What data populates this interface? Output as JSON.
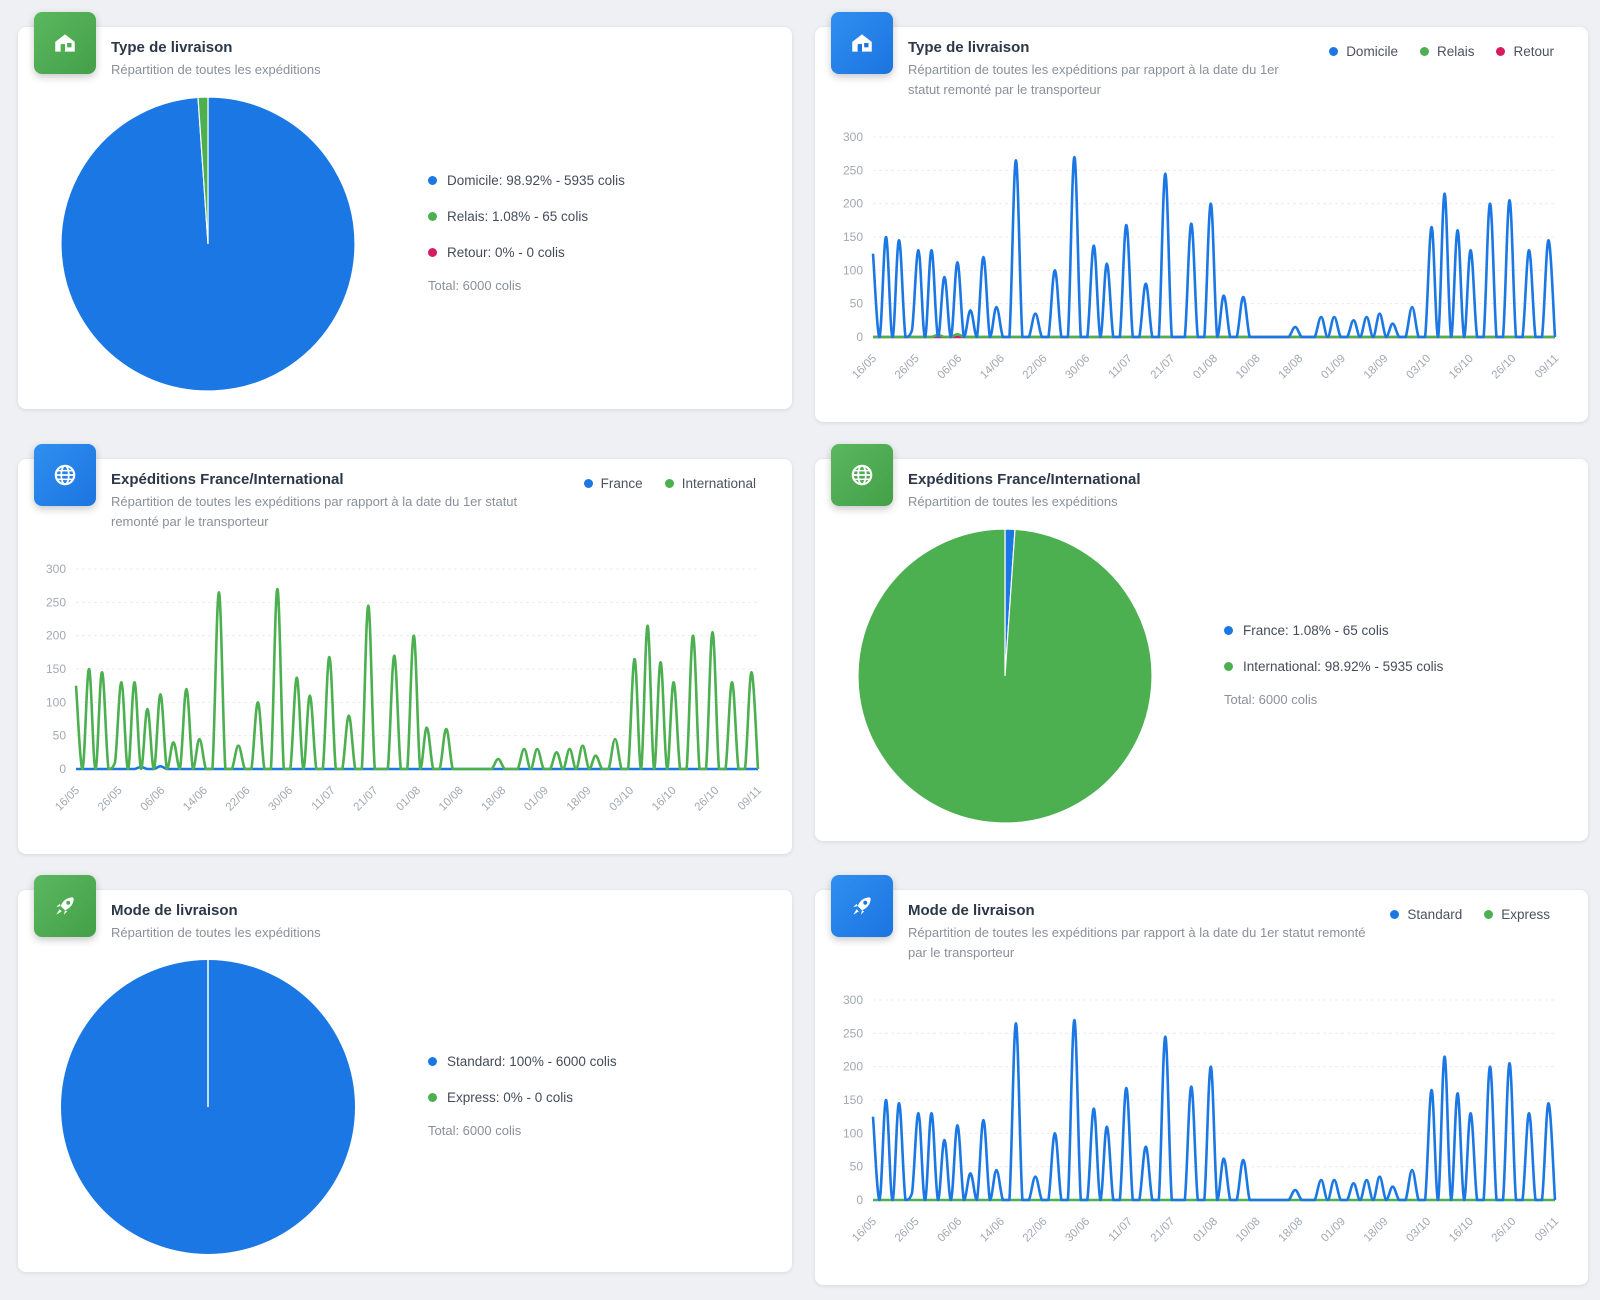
{
  "colors": {
    "blue": "#1b77e3",
    "green": "#4caf50",
    "red": "#d81b60"
  },
  "dates": [
    "16/05",
    "26/05",
    "06/06",
    "14/06",
    "22/06",
    "30/06",
    "11/07",
    "21/07",
    "01/08",
    "10/08",
    "18/08",
    "01/09",
    "18/09",
    "03/10",
    "16/10",
    "26/10",
    "09/11"
  ],
  "y_ticks": [
    "300",
    "250",
    "200",
    "150",
    "100",
    "50",
    "0"
  ],
  "pies": {
    "type": {
      "title": "Type de livraison",
      "subtitle": "Répartition de toutes les expéditions",
      "legend": [
        {
          "label": "Domicile: 98.92% - 5935 colis",
          "color": "#1b77e3"
        },
        {
          "label": "Relais: 1.08% - 65 colis",
          "color": "#4caf50"
        },
        {
          "label": "Retour: 0% - 0 colis",
          "color": "#d81b60"
        }
      ],
      "total": "Total: 6000 colis"
    },
    "geo": {
      "title": "Expéditions France/International",
      "subtitle": "Répartition de toutes les expéditions",
      "legend": [
        {
          "label": "France: 1.08% - 65 colis",
          "color": "#1b77e3"
        },
        {
          "label": "International: 98.92% - 5935 colis",
          "color": "#4caf50"
        }
      ],
      "total": "Total: 6000 colis"
    },
    "mode": {
      "title": "Mode de livraison",
      "subtitle": "Répartition de toutes les expéditions",
      "legend": [
        {
          "label": "Standard: 100% - 6000 colis",
          "color": "#1b77e3"
        },
        {
          "label": "Express: 0% - 0 colis",
          "color": "#4caf50"
        }
      ],
      "total": "Total: 6000 colis"
    }
  },
  "lines": {
    "type": {
      "title": "Type de livraison",
      "subtitle_1": "Répartition de toutes les expéditions par rapport à la date du 1er",
      "subtitle_2": "statut remonté par le transporteur",
      "legend": [
        {
          "label": "Domicile",
          "color": "#1b77e3"
        },
        {
          "label": "Relais",
          "color": "#4caf50"
        },
        {
          "label": "Retour",
          "color": "#d81b60"
        }
      ]
    },
    "geo": {
      "title": "Expéditions France/International",
      "subtitle_1": "Répartition de toutes les expéditions par rapport à la date du 1er statut",
      "subtitle_2": "remonté par le transporteur",
      "legend": [
        {
          "label": "France",
          "color": "#1b77e3"
        },
        {
          "label": "International",
          "color": "#4caf50"
        }
      ]
    },
    "mode": {
      "title": "Mode de livraison",
      "subtitle_1": "Répartition de toutes les expéditions par rapport à la date du 1er statut remonté",
      "subtitle_2": "par le transporteur",
      "legend": [
        {
          "label": "Standard",
          "color": "#1b77e3"
        },
        {
          "label": "Express",
          "color": "#4caf50"
        }
      ]
    }
  },
  "chart_data": [
    {
      "type": "pie",
      "title": "Type de livraison",
      "slices": [
        {
          "name": "Domicile",
          "value": 5935,
          "percent": 98.92,
          "color": "#1b77e3"
        },
        {
          "name": "Relais",
          "value": 65,
          "percent": 1.08,
          "color": "#4caf50"
        },
        {
          "name": "Retour",
          "value": 0,
          "percent": 0,
          "color": "#d81b60"
        }
      ]
    },
    {
      "type": "line",
      "title": "Type de livraison",
      "ylim": [
        0,
        300
      ],
      "series": [
        {
          "name": "Domicile",
          "color": "#1b77e3",
          "values": [
            125,
            0,
            150,
            0,
            145,
            0,
            10,
            130,
            0,
            130,
            0,
            90,
            0,
            112,
            0,
            40,
            0,
            120,
            0,
            45,
            0,
            0,
            265,
            0,
            0,
            35,
            0,
            0,
            100,
            0,
            0,
            270,
            0,
            0,
            137,
            0,
            110,
            0,
            0,
            168,
            0,
            0,
            80,
            0,
            0,
            245,
            0,
            0,
            0,
            170,
            0,
            0,
            200,
            0,
            62,
            0,
            0,
            60,
            0,
            0,
            0,
            0,
            0,
            0,
            0,
            15,
            0,
            0,
            0,
            30,
            0,
            30,
            0,
            0,
            25,
            0,
            30,
            0,
            35,
            0,
            20,
            0,
            0,
            45,
            0,
            0,
            165,
            0,
            215,
            0,
            160,
            0,
            130,
            0,
            0,
            200,
            0,
            0,
            205,
            0,
            0,
            130,
            0,
            0,
            145,
            0
          ]
        },
        {
          "name": "Relais",
          "color": "#4caf50",
          "values": [
            0,
            0,
            0,
            0,
            0,
            0,
            0,
            0,
            0,
            0,
            3,
            0,
            0,
            4,
            0,
            0,
            0,
            0,
            0,
            0,
            0,
            0,
            0,
            0,
            0,
            0,
            0,
            0,
            0,
            0,
            0,
            0,
            0,
            0,
            0,
            0,
            0,
            0,
            0,
            0,
            0,
            0,
            0,
            0,
            0,
            0,
            0,
            0,
            0,
            0,
            0,
            0,
            0,
            0,
            0,
            0,
            0,
            0,
            0,
            0,
            0,
            0,
            0,
            0,
            0,
            0,
            0,
            0,
            0,
            0,
            0,
            0,
            0,
            0,
            0,
            0,
            0,
            0,
            0,
            0,
            0,
            0,
            0,
            0,
            0,
            0,
            0,
            0,
            0,
            0,
            0,
            0,
            0,
            0,
            0,
            0,
            0,
            0,
            0,
            0,
            0,
            0,
            0,
            0,
            0,
            0
          ]
        },
        {
          "name": "Retour",
          "color": "#d81b60",
          "values": [
            0,
            0,
            0,
            0,
            0,
            0,
            0,
            0,
            0,
            0,
            0,
            0,
            0,
            0,
            0,
            0,
            0,
            0,
            0,
            0,
            0,
            0,
            0,
            0,
            0,
            0,
            0,
            0,
            0,
            0,
            0,
            0,
            0,
            0,
            0,
            0,
            0,
            0,
            0,
            0,
            0,
            0,
            0,
            0,
            0,
            0,
            0,
            0,
            0,
            0,
            0,
            0,
            0,
            0,
            0,
            0,
            0,
            0,
            0,
            0,
            0,
            0,
            0,
            0,
            0,
            0,
            0,
            0,
            0,
            0,
            0,
            0,
            0,
            0,
            0,
            0,
            0,
            0,
            0,
            0,
            0,
            0,
            0,
            0,
            0,
            0,
            0,
            0,
            0,
            0,
            0,
            0,
            0,
            0,
            0,
            0,
            0,
            0,
            0,
            0,
            0,
            0,
            0,
            0,
            0,
            0
          ]
        }
      ]
    },
    {
      "type": "line",
      "title": "Expéditions France/International",
      "ylim": [
        0,
        300
      ],
      "series": [
        {
          "name": "France",
          "color": "#1b77e3",
          "values": [
            0,
            0,
            0,
            0,
            0,
            0,
            0,
            0,
            0,
            0,
            3,
            0,
            0,
            4,
            0,
            0,
            0,
            0,
            0,
            0,
            0,
            0,
            0,
            0,
            0,
            0,
            0,
            0,
            0,
            0,
            0,
            0,
            0,
            0,
            0,
            0,
            0,
            0,
            0,
            0,
            0,
            0,
            0,
            0,
            0,
            0,
            0,
            0,
            0,
            0,
            0,
            0,
            0,
            0,
            0,
            0,
            0,
            0,
            0,
            0,
            0,
            0,
            0,
            0,
            0,
            0,
            0,
            0,
            0,
            0,
            0,
            0,
            0,
            0,
            0,
            0,
            0,
            0,
            0,
            0,
            0,
            0,
            0,
            0,
            0,
            0,
            0,
            0,
            0,
            0,
            0,
            0,
            0,
            0,
            0,
            0,
            0,
            0,
            0,
            0,
            0,
            0,
            0,
            0,
            0,
            0
          ]
        },
        {
          "name": "International",
          "color": "#4caf50",
          "values": [
            125,
            0,
            150,
            0,
            145,
            0,
            10,
            130,
            0,
            130,
            0,
            90,
            0,
            112,
            0,
            40,
            0,
            120,
            0,
            45,
            0,
            0,
            265,
            0,
            0,
            35,
            0,
            0,
            100,
            0,
            0,
            270,
            0,
            0,
            137,
            0,
            110,
            0,
            0,
            168,
            0,
            0,
            80,
            0,
            0,
            245,
            0,
            0,
            0,
            170,
            0,
            0,
            200,
            0,
            62,
            0,
            0,
            60,
            0,
            0,
            0,
            0,
            0,
            0,
            0,
            15,
            0,
            0,
            0,
            30,
            0,
            30,
            0,
            0,
            25,
            0,
            30,
            0,
            35,
            0,
            20,
            0,
            0,
            45,
            0,
            0,
            165,
            0,
            215,
            0,
            160,
            0,
            130,
            0,
            0,
            200,
            0,
            0,
            205,
            0,
            0,
            130,
            0,
            0,
            145,
            0
          ]
        }
      ]
    },
    {
      "type": "pie",
      "title": "Expéditions France/International",
      "slices": [
        {
          "name": "France",
          "value": 65,
          "percent": 1.08,
          "color": "#1b77e3"
        },
        {
          "name": "International",
          "value": 5935,
          "percent": 98.92,
          "color": "#4caf50"
        }
      ]
    },
    {
      "type": "pie",
      "title": "Mode de livraison",
      "slices": [
        {
          "name": "Standard",
          "value": 6000,
          "percent": 100,
          "color": "#1b77e3"
        },
        {
          "name": "Express",
          "value": 0,
          "percent": 0,
          "color": "#4caf50"
        }
      ]
    },
    {
      "type": "line",
      "title": "Mode de livraison",
      "ylim": [
        0,
        300
      ],
      "series": [
        {
          "name": "Standard",
          "color": "#1b77e3",
          "values": [
            125,
            0,
            150,
            0,
            145,
            0,
            10,
            130,
            0,
            130,
            0,
            90,
            0,
            112,
            0,
            40,
            0,
            120,
            0,
            45,
            0,
            0,
            265,
            0,
            0,
            35,
            0,
            0,
            100,
            0,
            0,
            270,
            0,
            0,
            137,
            0,
            110,
            0,
            0,
            168,
            0,
            0,
            80,
            0,
            0,
            245,
            0,
            0,
            0,
            170,
            0,
            0,
            200,
            0,
            62,
            0,
            0,
            60,
            0,
            0,
            0,
            0,
            0,
            0,
            0,
            15,
            0,
            0,
            0,
            30,
            0,
            30,
            0,
            0,
            25,
            0,
            30,
            0,
            35,
            0,
            20,
            0,
            0,
            45,
            0,
            0,
            165,
            0,
            215,
            0,
            160,
            0,
            130,
            0,
            0,
            200,
            0,
            0,
            205,
            0,
            0,
            130,
            0,
            0,
            145,
            0
          ]
        },
        {
          "name": "Express",
          "color": "#4caf50",
          "values": [
            0,
            0,
            0,
            0,
            0,
            0,
            0,
            0,
            0,
            0,
            0,
            0,
            0,
            0,
            0,
            0,
            0,
            0,
            0,
            0,
            0,
            0,
            0,
            0,
            0,
            0,
            0,
            0,
            0,
            0,
            0,
            0,
            0,
            0,
            0,
            0,
            0,
            0,
            0,
            0,
            0,
            0,
            0,
            0,
            0,
            0,
            0,
            0,
            0,
            0,
            0,
            0,
            0,
            0,
            0,
            0,
            0,
            0,
            0,
            0,
            0,
            0,
            0,
            0,
            0,
            0,
            0,
            0,
            0,
            0,
            0,
            0,
            0,
            0,
            0,
            0,
            0,
            0,
            0,
            0,
            0,
            0,
            0,
            0,
            0,
            0,
            0,
            0,
            0,
            0,
            0,
            0,
            0,
            0,
            0,
            0,
            0,
            0,
            0,
            0,
            0,
            0,
            0,
            0,
            0,
            0
          ]
        }
      ]
    }
  ]
}
